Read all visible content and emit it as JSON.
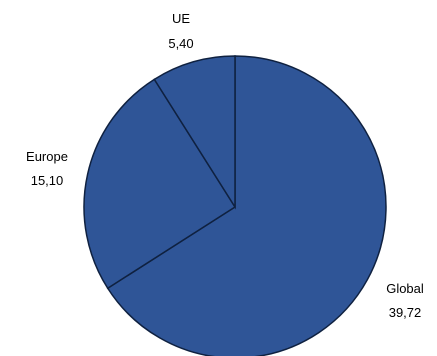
{
  "chart_data": {
    "type": "pie",
    "categories": [
      "Global",
      "Europe",
      "UE"
    ],
    "values": [
      39.72,
      15.1,
      5.4
    ],
    "value_labels": [
      "39,72",
      "15,10",
      "5,40"
    ],
    "title": "",
    "legend": "none",
    "slice_color": "#2F5597",
    "stroke_color": "#0F2140"
  }
}
